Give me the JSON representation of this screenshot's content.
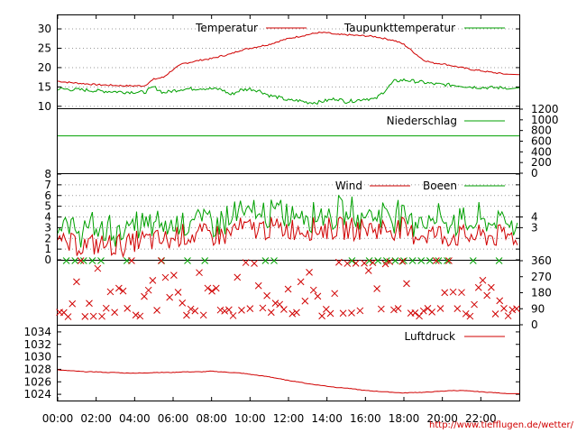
{
  "chart_data": [
    {
      "type": "line",
      "x": [
        "00:00",
        "00:30",
        "01:00",
        "01:30",
        "02:00",
        "02:30",
        "03:00",
        "03:30",
        "04:00",
        "04:30",
        "05:00",
        "05:30",
        "06:00",
        "06:30",
        "07:00",
        "07:30",
        "08:00",
        "08:30",
        "09:00",
        "09:30",
        "10:00",
        "10:30",
        "11:00",
        "11:30",
        "12:00",
        "12:30",
        "13:00",
        "13:30",
        "14:00",
        "14:30",
        "15:00",
        "15:30",
        "16:00",
        "16:30",
        "17:00",
        "17:30",
        "18:00",
        "18:30",
        "19:00",
        "19:30",
        "20:00",
        "20:30",
        "21:00",
        "21:30",
        "22:00",
        "22:30",
        "23:00",
        "23:30"
      ],
      "series": [
        {
          "name": "Temperatur",
          "color": "#d00000",
          "values": [
            16.5,
            16.2,
            16,
            15.8,
            15.6,
            15.5,
            15.4,
            15.3,
            15.3,
            15.3,
            17,
            17.5,
            19.5,
            21,
            21.5,
            22,
            22.3,
            23,
            23.5,
            24.5,
            25,
            25.5,
            26,
            26.8,
            27.5,
            28,
            28.5,
            29,
            29,
            28.5,
            28.5,
            28.3,
            28.2,
            28,
            27.5,
            27,
            26,
            24,
            22,
            21.2,
            21,
            20.5,
            20,
            19.5,
            19.2,
            18.8,
            18.5,
            18.2
          ]
        },
        {
          "name": "Taupunkttemperatur",
          "color": "#00a000",
          "values": [
            14.5,
            14.4,
            14.3,
            14.2,
            14,
            13.9,
            13.8,
            13.7,
            13.7,
            13.6,
            15,
            13.5,
            14,
            14.5,
            14.5,
            14.7,
            14.5,
            14.4,
            13,
            14.2,
            14.5,
            14,
            12.8,
            12.3,
            11.5,
            11.5,
            11,
            11,
            11.5,
            12,
            11.2,
            11.5,
            12,
            11.8,
            14,
            16.5,
            16.8,
            16.5,
            16.2,
            15.8,
            15.6,
            15.5,
            15.3,
            15,
            14.9,
            14.8,
            14.8,
            14.8
          ]
        }
      ],
      "ylim": [
        9.5,
        33.5
      ],
      "yticks": [
        10,
        15,
        20,
        25,
        30
      ],
      "grid": true
    },
    {
      "type": "line",
      "series": [
        {
          "name": "Niederschlag",
          "color": "#00a000",
          "values": [
            700
          ]
        }
      ],
      "ylim": [
        0,
        1200
      ],
      "yticks_right": [
        0,
        200,
        400,
        600,
        800,
        1000,
        1200
      ]
    },
    {
      "type": "line",
      "series": [
        {
          "name": "Wind",
          "color": "#d00000"
        },
        {
          "name": "Boeen",
          "color": "#00a000"
        }
      ],
      "ylim": [
        0,
        8
      ],
      "yticks": [
        0,
        1,
        2,
        3,
        4,
        5,
        6,
        7,
        8
      ],
      "yticks_right": [
        3,
        4
      ]
    },
    {
      "type": "scatter",
      "marker": "x",
      "colors": {
        "direction": "#d00000",
        "calm": "#00a000"
      },
      "ylim": [
        0,
        360
      ],
      "yticks_right": [
        0,
        90,
        180,
        270,
        360
      ]
    },
    {
      "type": "line",
      "series": [
        {
          "name": "Luftdruck",
          "color": "#d00000",
          "values": [
            1027.9,
            1027.8,
            1027.7,
            1027.6,
            1027.6,
            1027.5,
            1027.5,
            1027.4,
            1027.4,
            1027.4,
            1027.5,
            1027.5,
            1027.5,
            1027.6,
            1027.6,
            1027.6,
            1027.7,
            1027.6,
            1027.5,
            1027.4,
            1027.2,
            1027,
            1026.8,
            1026.5,
            1026.2,
            1026,
            1025.7,
            1025.5,
            1025.3,
            1025.1,
            1025,
            1024.8,
            1024.6,
            1024.5,
            1024.4,
            1024.3,
            1024.2,
            1024.3,
            1024.3,
            1024.4,
            1024.5,
            1024.6,
            1024.6,
            1024.5,
            1024.4,
            1024.3,
            1024.2,
            1024.1
          ]
        }
      ],
      "ylim": [
        1023,
        1035
      ],
      "yticks": [
        1024,
        1026,
        1028,
        1030,
        1032,
        1034
      ]
    }
  ],
  "x_axis": {
    "ticks": [
      "00:00",
      "02:00",
      "04:00",
      "06:00",
      "08:00",
      "10:00",
      "12:00",
      "14:00",
      "16:00",
      "18:00",
      "20:00",
      "22:00"
    ]
  },
  "credit": "http://www.tiefflugen.de/wetter/"
}
